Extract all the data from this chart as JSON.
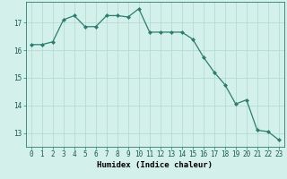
{
  "x": [
    0,
    1,
    2,
    3,
    4,
    5,
    6,
    7,
    8,
    9,
    10,
    11,
    12,
    13,
    14,
    15,
    16,
    17,
    18,
    19,
    20,
    21,
    22,
    23
  ],
  "y": [
    16.2,
    16.2,
    16.3,
    17.1,
    17.25,
    16.85,
    16.85,
    17.25,
    17.25,
    17.2,
    17.5,
    16.65,
    16.65,
    16.65,
    16.65,
    16.4,
    15.75,
    15.2,
    14.75,
    14.05,
    14.2,
    13.1,
    13.05,
    12.75
  ],
  "line_color": "#2d7d6e",
  "marker": "D",
  "marker_size": 2,
  "bg_color": "#d4f0ea",
  "grid_color_major": "#b0d8d0",
  "grid_color_minor": "#c8ebe5",
  "xlabel": "Humidex (Indice chaleur)",
  "xlim": [
    -0.5,
    23.5
  ],
  "ylim": [
    12.5,
    17.75
  ],
  "yticks": [
    13,
    14,
    15,
    16,
    17
  ],
  "xticks": [
    0,
    1,
    2,
    3,
    4,
    5,
    6,
    7,
    8,
    9,
    10,
    11,
    12,
    13,
    14,
    15,
    16,
    17,
    18,
    19,
    20,
    21,
    22,
    23
  ],
  "tick_fontsize": 5.5,
  "xlabel_fontsize": 6.5,
  "spine_color": "#2d7d6e",
  "linewidth": 0.9
}
